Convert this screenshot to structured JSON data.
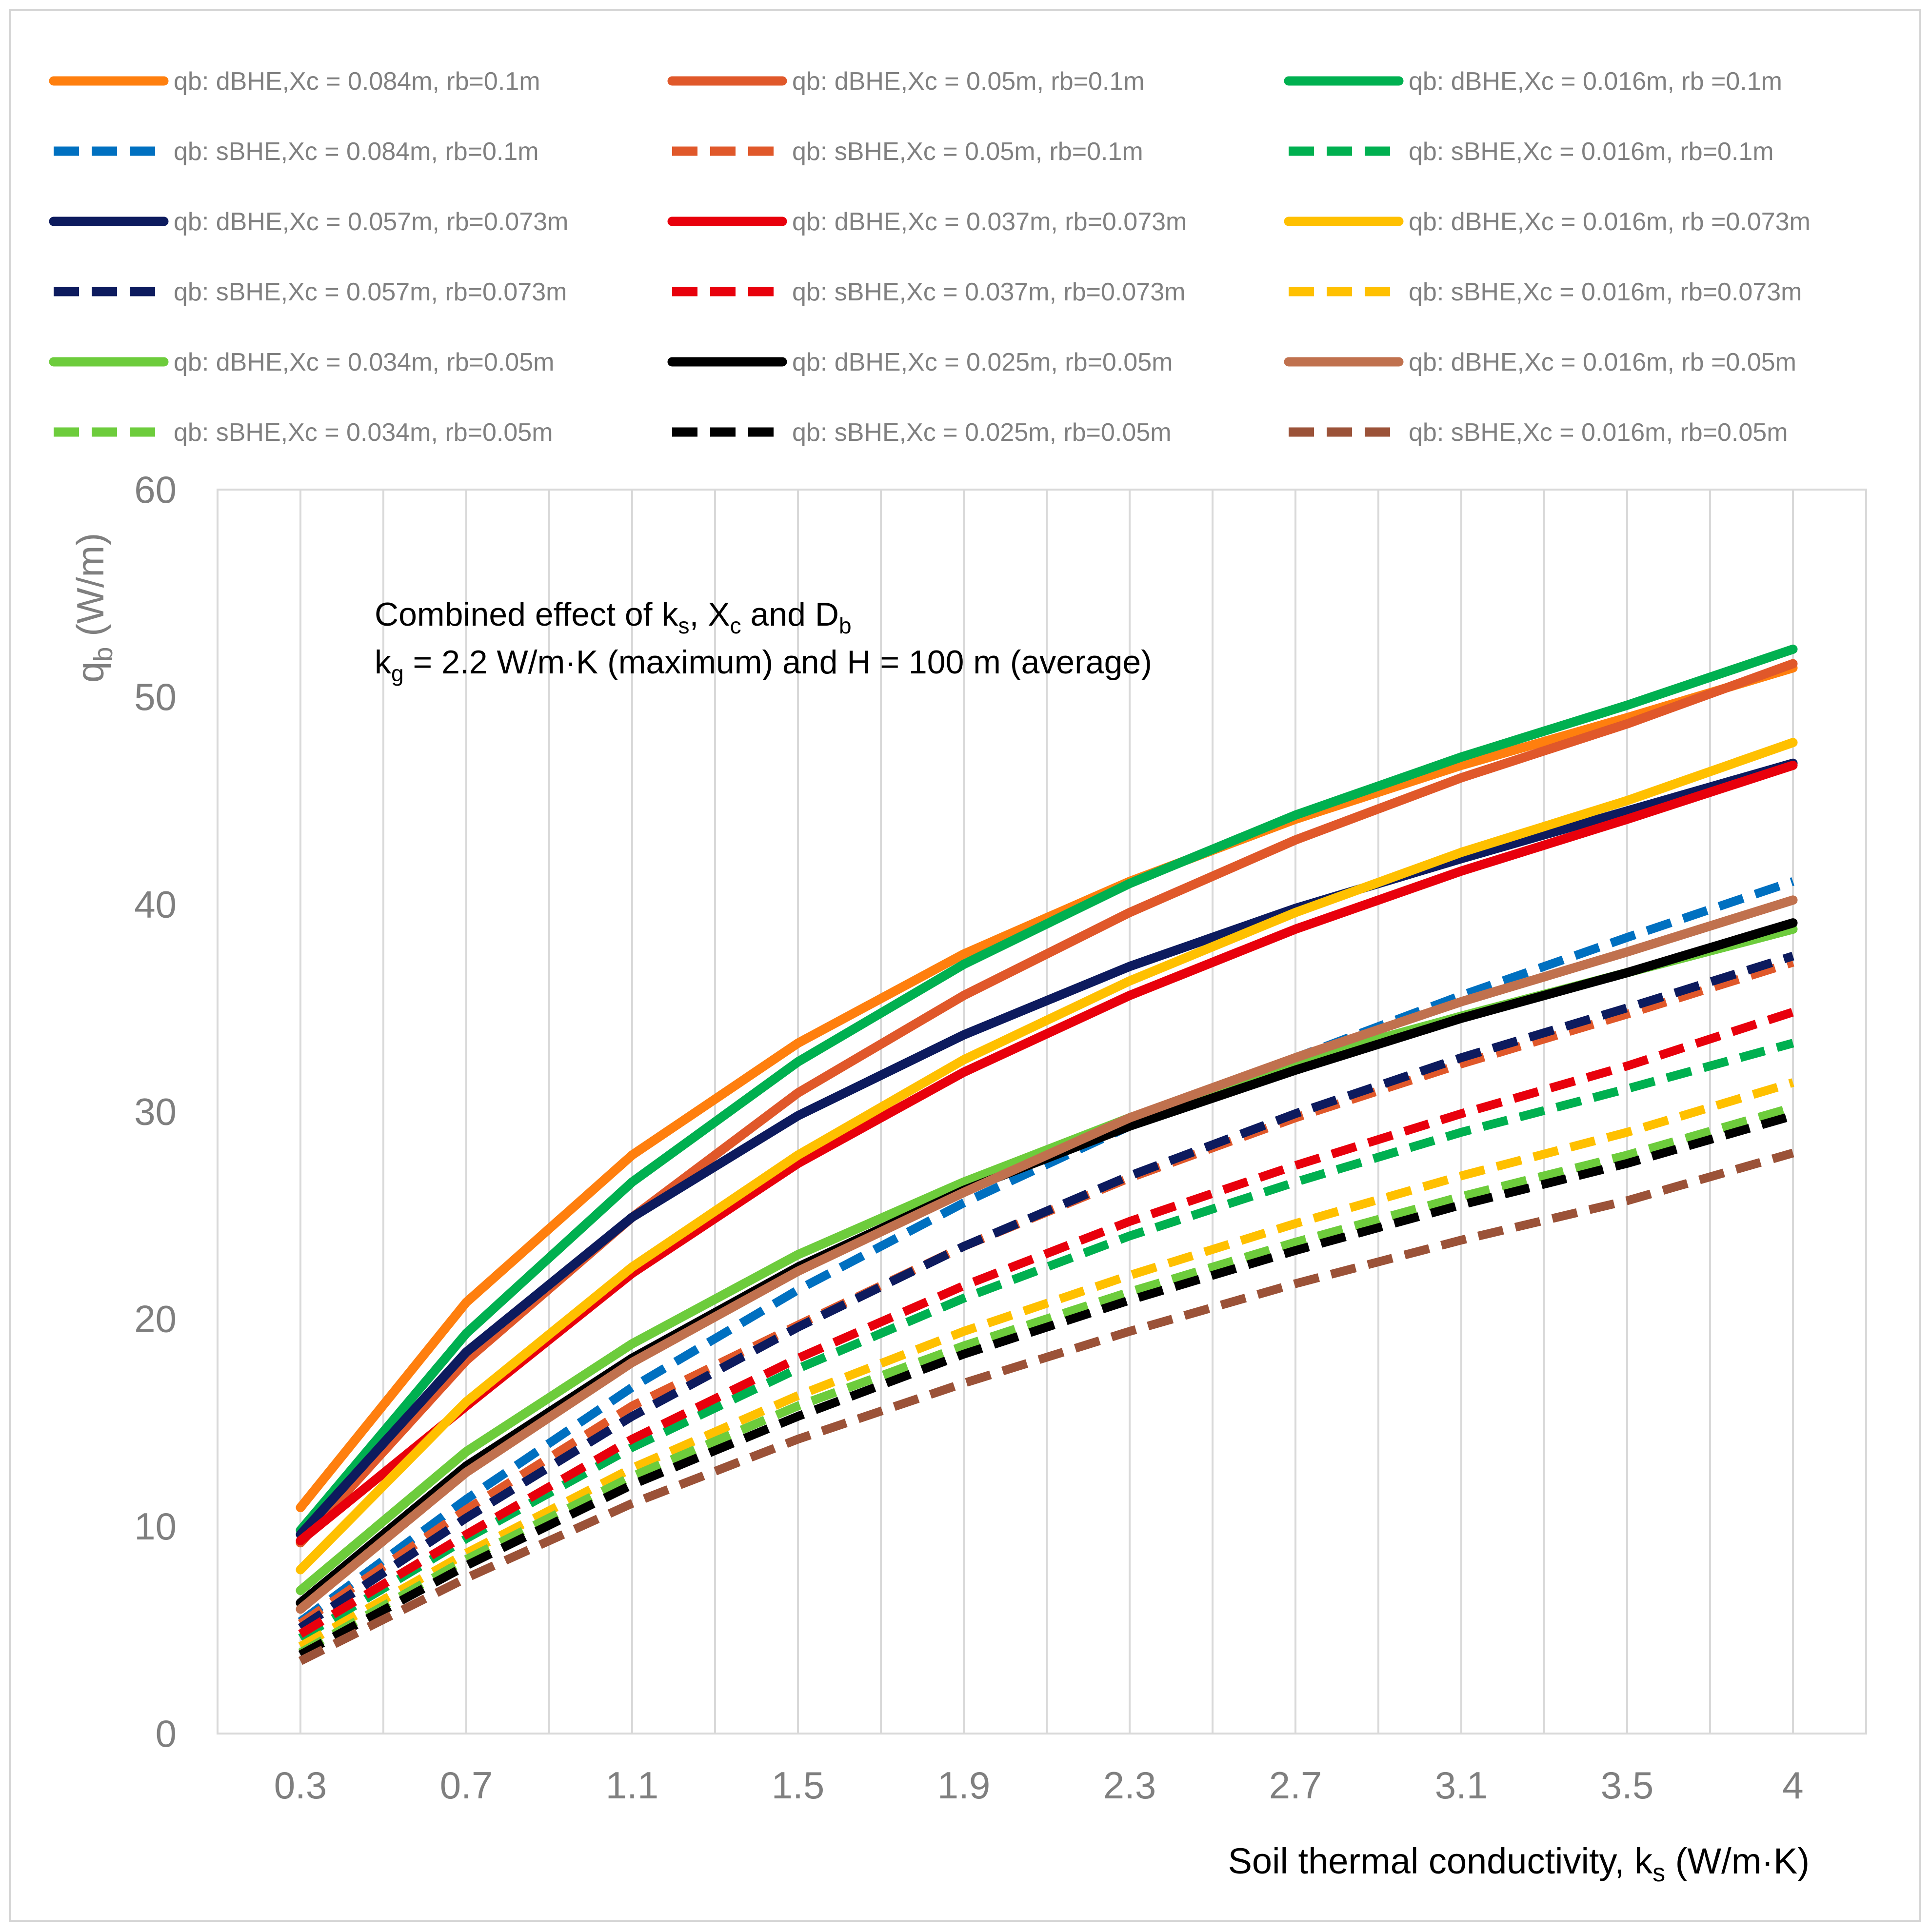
{
  "chart_data": {
    "type": "line",
    "title": "",
    "xlabel": {
      "main": "Soil thermal conductivity, k",
      "sub": "s",
      "unit": " (W/m·K)"
    },
    "ylabel": {
      "main": "q",
      "sub": "b",
      "unit": " (W/m)"
    },
    "annotation": {
      "line1": {
        "pre": "Combined effect of  k",
        "s1": "s",
        "mid1": ", X",
        "s2": "c",
        "mid2": " and D",
        "s3": "b"
      },
      "line2": {
        "pre": "k",
        "s1": "g",
        "rest": " = 2.2 W/m·K (maximum) and H = 100 m (average)"
      }
    },
    "categories": [
      "0.3",
      "0.7",
      "1.1",
      "1.5",
      "1.9",
      "2.3",
      "2.7",
      "3.1",
      "3.5",
      "4"
    ],
    "x": [
      0.3,
      0.7,
      1.1,
      1.5,
      1.9,
      2.3,
      2.7,
      3.1,
      3.5,
      4.0
    ],
    "ylim": [
      0,
      60
    ],
    "yticks": [
      0,
      10,
      20,
      30,
      40,
      50,
      60
    ],
    "grid": true,
    "legend_position": "top",
    "series": [
      {
        "name": "qb: dBHE,Xc = 0.084m, rb=0.1m",
        "color": "#ff7f0e",
        "dash": false,
        "values": [
          10.9,
          20.8,
          27.9,
          33.3,
          37.6,
          41.1,
          44.1,
          46.7,
          49.0,
          51.4
        ]
      },
      {
        "name": "qb: dBHE,Xc = 0.05m, rb=0.1m",
        "color": "#e0582a",
        "dash": false,
        "values": [
          9.2,
          18.0,
          24.9,
          30.9,
          35.6,
          39.6,
          43.1,
          46.1,
          48.7,
          51.6
        ]
      },
      {
        "name": "qb: dBHE,Xc = 0.016m, rb =0.1m",
        "color": "#00b050",
        "dash": false,
        "values": [
          9.8,
          19.3,
          26.6,
          32.4,
          37.1,
          41.0,
          44.3,
          47.1,
          49.6,
          52.3
        ]
      },
      {
        "name": "qb: sBHE,Xc = 0.084m, rb=0.1m",
        "color": "#0070c0",
        "dash": true,
        "values": [
          5.4,
          11.3,
          16.7,
          21.4,
          25.6,
          29.3,
          32.6,
          35.6,
          38.4,
          41.1
        ]
      },
      {
        "name": "qb: sBHE,Xc = 0.05m, rb=0.1m",
        "color": "#e0582a",
        "dash": true,
        "values": [
          5.3,
          10.8,
          15.8,
          19.7,
          23.5,
          26.8,
          29.7,
          32.3,
          34.7,
          37.2
        ]
      },
      {
        "name": "qb: sBHE,Xc = 0.016m, rb=0.1m",
        "color": "#00b050",
        "dash": true,
        "values": [
          4.6,
          9.4,
          13.8,
          17.6,
          21.0,
          24.0,
          26.6,
          29.0,
          31.1,
          33.3
        ]
      },
      {
        "name": "qb: dBHE,Xc = 0.057m, rb=0.073m",
        "color": "#0d1b5e",
        "dash": false,
        "values": [
          9.6,
          18.4,
          24.9,
          29.8,
          33.7,
          37.0,
          39.8,
          42.2,
          44.5,
          46.8
        ]
      },
      {
        "name": "qb: dBHE,Xc = 0.037m, rb=0.073m",
        "color": "#e8000c",
        "dash": false,
        "values": [
          9.3,
          15.8,
          22.2,
          27.5,
          31.9,
          35.6,
          38.8,
          41.6,
          44.1,
          46.7
        ]
      },
      {
        "name": "qb: dBHE,Xc = 0.016m, rb =0.073m",
        "color": "#ffc000",
        "dash": false,
        "values": [
          7.9,
          16.0,
          22.5,
          27.9,
          32.5,
          36.3,
          39.6,
          42.5,
          45.0,
          47.8
        ]
      },
      {
        "name": "qb: sBHE,Xc = 0.057m, rb=0.073m",
        "color": "#0d1b5e",
        "dash": true,
        "values": [
          5.1,
          10.4,
          15.3,
          19.6,
          23.5,
          26.9,
          29.9,
          32.6,
          35.0,
          37.5
        ]
      },
      {
        "name": "qb: sBHE,Xc = 0.037m, rb=0.073m",
        "color": "#e8000c",
        "dash": true,
        "values": [
          4.8,
          9.6,
          14.2,
          18.1,
          21.6,
          24.7,
          27.4,
          29.9,
          32.2,
          34.8
        ]
      },
      {
        "name": "qb: sBHE,Xc = 0.016m, rb=0.073m",
        "color": "#ffc000",
        "dash": true,
        "values": [
          4.2,
          8.7,
          12.8,
          16.3,
          19.4,
          22.1,
          24.6,
          26.9,
          29.0,
          31.4
        ]
      },
      {
        "name": "qb: dBHE,Xc = 0.034m, rb=0.05m",
        "color": "#6dcc3c",
        "dash": false,
        "values": [
          6.9,
          13.6,
          18.8,
          23.1,
          26.6,
          29.7,
          32.4,
          34.6,
          36.7,
          38.8
        ]
      },
      {
        "name": "qb: dBHE,Xc = 0.025m, rb=0.05m",
        "color": "#000000",
        "dash": false,
        "values": [
          6.3,
          12.9,
          18.1,
          22.5,
          26.2,
          29.3,
          32.0,
          34.5,
          36.7,
          39.1
        ]
      },
      {
        "name": "qb: dBHE,Xc = 0.016m, rb =0.05m",
        "color": "#c0714e",
        "dash": false,
        "values": [
          6.0,
          12.6,
          17.9,
          22.3,
          26.1,
          29.7,
          32.6,
          35.3,
          37.7,
          40.2
        ]
      },
      {
        "name": "qb: sBHE,Xc = 0.034m, rb=0.05m",
        "color": "#6dcc3c",
        "dash": true,
        "values": [
          3.9,
          8.4,
          12.4,
          15.8,
          18.7,
          21.3,
          23.7,
          25.9,
          27.9,
          30.2
        ]
      },
      {
        "name": "qb: sBHE,Xc = 0.025m, rb=0.05m",
        "color": "#000000",
        "dash": true,
        "values": [
          3.8,
          8.1,
          12.0,
          15.3,
          18.3,
          20.9,
          23.3,
          25.5,
          27.5,
          29.8
        ]
      },
      {
        "name": "qb: sBHE,Xc = 0.016m, rb=0.05m",
        "color": "#9b5238",
        "dash": true,
        "values": [
          3.5,
          7.5,
          11.1,
          14.2,
          16.9,
          19.4,
          21.7,
          23.8,
          25.7,
          28.0
        ]
      }
    ]
  }
}
